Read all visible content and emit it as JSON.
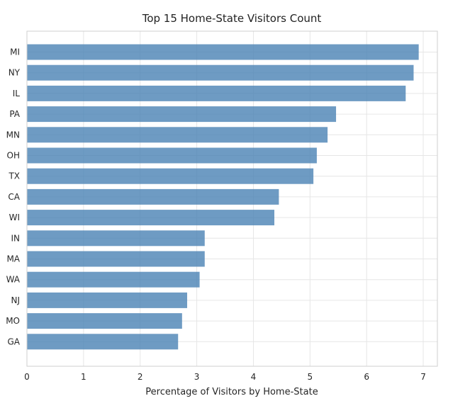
{
  "chart_data": {
    "type": "bar",
    "orientation": "horizontal",
    "title": "Top 15 Home-State Visitors Count",
    "xlabel": "Percentage of Visitors by Home-State",
    "ylabel": "",
    "categories": [
      "MI",
      "NY",
      "IL",
      "PA",
      "MN",
      "OH",
      "TX",
      "CA",
      "WI",
      "IN",
      "MA",
      "WA",
      "NJ",
      "MO",
      "GA"
    ],
    "values": [
      6.92,
      6.83,
      6.69,
      5.46,
      5.31,
      5.12,
      5.06,
      4.45,
      4.37,
      3.14,
      3.14,
      3.05,
      2.83,
      2.74,
      2.67
    ],
    "xlim": [
      0,
      7.25
    ],
    "xticks": [
      0,
      1,
      2,
      3,
      4,
      5,
      6,
      7
    ],
    "grid": true,
    "legend": "none",
    "bar_color": "#4a82b4"
  }
}
